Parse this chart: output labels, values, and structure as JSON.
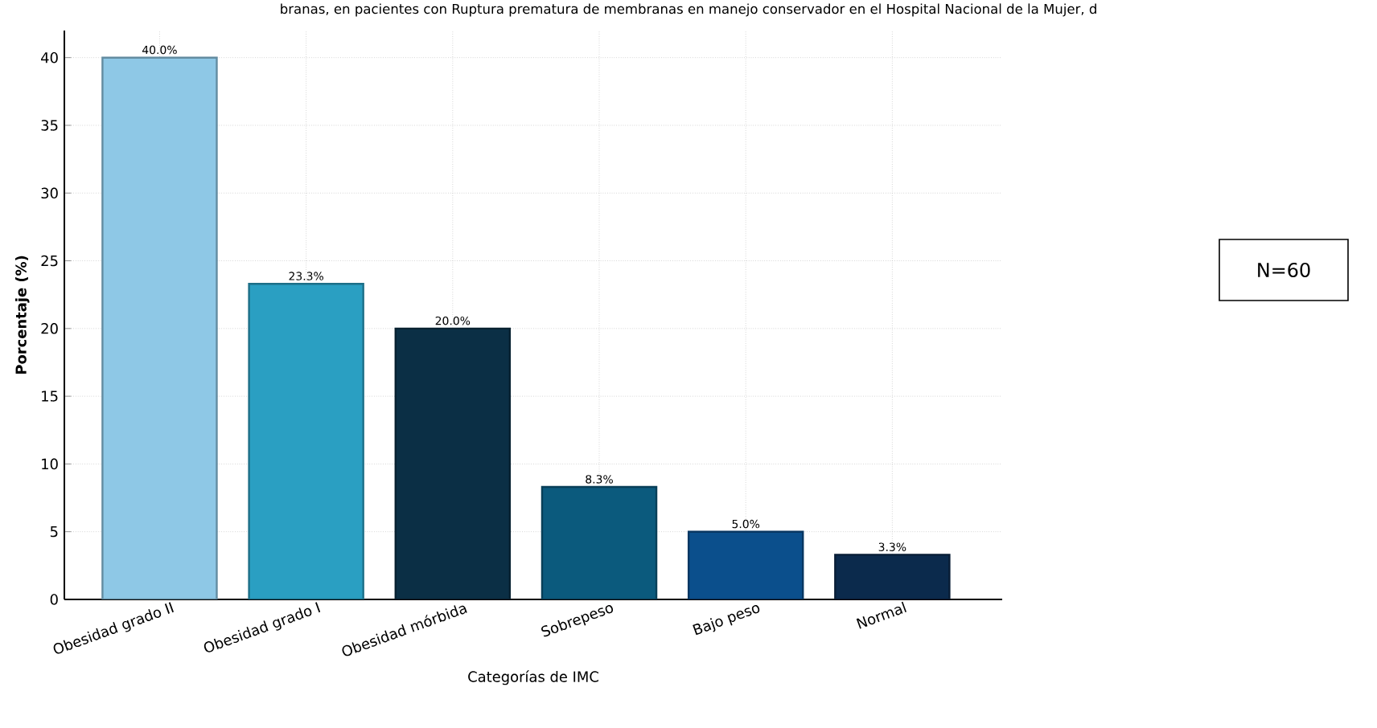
{
  "chart_data": {
    "type": "bar",
    "title": "branas, en pacientes con Ruptura prematura de membranas en manejo conservador en el Hospital Nacional de la Mujer, d",
    "xlabel": "Categorías de IMC",
    "ylabel": "Porcentaje (%)",
    "categories": [
      "Obesidad grado II",
      "Obesidad grado I",
      "Obesidad mórbida",
      "Sobrepeso",
      "Bajo peso",
      "Normal"
    ],
    "values": [
      40.0,
      23.3,
      20.0,
      8.3,
      5.0,
      3.3
    ],
    "value_labels": [
      "40.0%",
      "23.3%",
      "20.0%",
      "8.3%",
      "5.0%",
      "3.3%"
    ],
    "colors": [
      "#8ec8e6",
      "#2a9fc2",
      "#0b2f45",
      "#0b5a7d",
      "#0b4f8c",
      "#0b2a4c"
    ],
    "ylim": [
      0,
      42
    ],
    "yticks": [
      0,
      5,
      10,
      15,
      20,
      25,
      30,
      35,
      40
    ],
    "grid": true,
    "annotations": [
      "N=60"
    ]
  }
}
